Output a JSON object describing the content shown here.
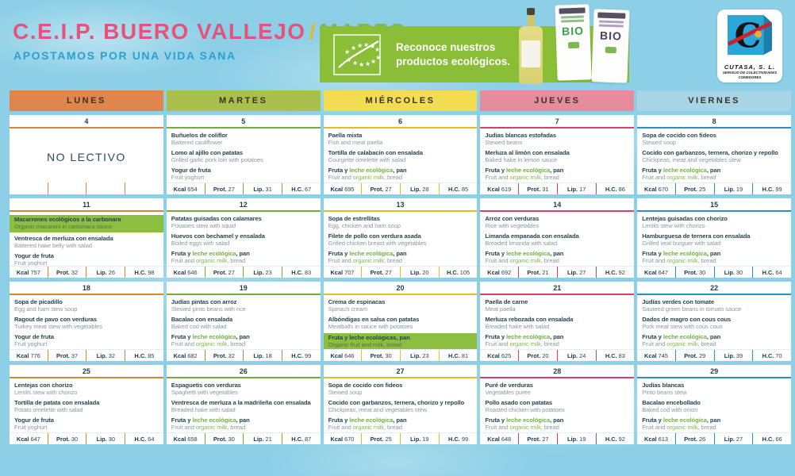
{
  "header": {
    "title_school": "C.E.I.P. BUERO VALLEJO",
    "title_slash": "/",
    "title_month": "MARZO",
    "subtitle": "APOSTAMOS POR UNA VIDA SANA"
  },
  "banner": {
    "text": "Reconoce nuestros productos ecológicos.",
    "background_color": "#8abe37"
  },
  "products": {
    "bio_label": "BIO"
  },
  "logo": {
    "name": "CUTASA, S. L.",
    "sub1": "SERVICIO DE COLECTIVIDADES",
    "sub2": "COMEDORES"
  },
  "nutrition_labels": {
    "kcal": "Kcal",
    "prot": "Prot.",
    "lip": "Lip.",
    "hc": "H.C."
  },
  "colors": {
    "title_pink": "#e6537a",
    "title_yellow": "#eab52c",
    "title_green": "#7db94e",
    "subtitle_blue": "#2da0d0",
    "eco_green": "#72b043",
    "highlight_green": "#8cbf40"
  },
  "days": [
    {
      "label": "Lunes",
      "header_color": "#e0854b",
      "accent_color": "#d8862f"
    },
    {
      "label": "Martes",
      "header_color": "#a9c04d",
      "accent_color": "#76ad35"
    },
    {
      "label": "Miércoles",
      "header_color": "#f2dc52",
      "accent_color": "#e3bd23"
    },
    {
      "label": "Jueves",
      "header_color": "#e78c9c",
      "accent_color": "#d84069"
    },
    {
      "label": "Viernes",
      "header_color": "#a7d5e7",
      "accent_color": "#2593c0"
    }
  ],
  "no_school_label": "NO LECTIVO",
  "weeks": [
    {
      "cells": [
        {
          "date": "4",
          "no_school": true
        },
        {
          "date": "5",
          "courses": [
            {
              "es": "Buñuelos de coliflor",
              "en": "Battered cauliflower"
            },
            {
              "es": "Lomo al ajillo con patatas",
              "en": "Grilled garlic pork loin with potatoes"
            },
            {
              "es": "Yogur de fruta",
              "en": "Fruit yoghurt"
            }
          ],
          "nutrition": {
            "kcal": "654",
            "prot": "27",
            "lip": "31",
            "hc": "67"
          }
        },
        {
          "date": "6",
          "courses": [
            {
              "es": "Paella mixta",
              "en": "Fish and meat paella"
            },
            {
              "es": "Tortilla de calabacín con ensalada",
              "en": "Courgette omelette with salad"
            },
            {
              "es": "Fruta y leche ecológica, pan",
              "es_eco": "leche ecológica",
              "en": "Fruit and organic milk, bread",
              "en_eco": "organic milk"
            }
          ],
          "nutrition": {
            "kcal": "695",
            "prot": "27",
            "lip": "28",
            "hc": "85"
          }
        },
        {
          "date": "7",
          "courses": [
            {
              "es": "Judías blancas estofadas",
              "en": "Stewed beans"
            },
            {
              "es": "Merluza al limón con ensalada",
              "en": "Baked hake in lemon sauce"
            },
            {
              "es": "Fruta y leche ecológica, pan",
              "es_eco": "leche ecológica",
              "en": "Fruit and organic milk, bread",
              "en_eco": "organic milk"
            }
          ],
          "nutrition": {
            "kcal": "619",
            "prot": "31",
            "lip": "17",
            "hc": "86"
          }
        },
        {
          "date": "8",
          "courses": [
            {
              "es": "Sopa de cocido con fideos",
              "en": "Stewed soup"
            },
            {
              "es": "Cocido con garbanzos, ternera, chorizo y repollo",
              "en": "Chickpeas, meat and vegetables stew"
            },
            {
              "es": "Fruta y leche ecológica, pan",
              "es_eco": "leche ecológica",
              "en": "Fruit and organic milk, bread",
              "en_eco": "organic milk"
            }
          ],
          "nutrition": {
            "kcal": "670",
            "prot": "25",
            "lip": "19",
            "hc": "99"
          }
        }
      ]
    },
    {
      "cells": [
        {
          "date": "11",
          "courses": [
            {
              "es": "Macarrones ecológicos a la carbonara",
              "en": "Organic macaroni in carbonara sauce",
              "highlight": true
            },
            {
              "es": "Ventresca de merluza con ensalada",
              "en": "Battered hake belly with salad"
            },
            {
              "es": "Yogur de fruta",
              "en": "Fruit yoghurt"
            }
          ],
          "nutrition": {
            "kcal": "757",
            "prot": "32",
            "lip": "26",
            "hc": "98"
          }
        },
        {
          "date": "12",
          "courses": [
            {
              "es": "Patatas guisadas con calamares",
              "en": "Potatoes stew with squid"
            },
            {
              "es": "Huevos con bechamel y ensalada",
              "en": "Boiled eggs with salad"
            },
            {
              "es": "Fruta y leche ecológica, pan",
              "es_eco": "leche ecológica",
              "en": "Fruit and organic milk, bread",
              "en_eco": "organic milk"
            }
          ],
          "nutrition": {
            "kcal": "646",
            "prot": "27",
            "lip": "23",
            "hc": "83"
          }
        },
        {
          "date": "13",
          "courses": [
            {
              "es": "Sopa de estrellitas",
              "en": "Egg, chicken and ham soup"
            },
            {
              "es": "Filete de pollo con verdura asada",
              "en": "Grilled chicken breast with vegetables"
            },
            {
              "es": "Fruta y leche ecológica, pan",
              "es_eco": "leche ecológica",
              "en": "Fruit and organic milk, bread",
              "en_eco": "organic milk"
            }
          ],
          "nutrition": {
            "kcal": "707",
            "prot": "27",
            "lip": "20",
            "hc": "105"
          }
        },
        {
          "date": "14",
          "courses": [
            {
              "es": "Arroz con verduras",
              "en": "Rice with vegetables"
            },
            {
              "es": "Limanda empanada con ensalada",
              "en": "Breaded limanda with salad"
            },
            {
              "es": "Fruta y leche ecológica, pan",
              "es_eco": "leche ecológica",
              "en": "Fruit and organic milk, bread",
              "en_eco": "organic milk"
            }
          ],
          "nutrition": {
            "kcal": "692",
            "prot": "21",
            "lip": "27",
            "hc": "92"
          }
        },
        {
          "date": "15",
          "courses": [
            {
              "es": "Lentejas guisadas con chorizo",
              "en": "Lentils stew with chorizo"
            },
            {
              "es": "Hamburguesa de ternera con ensalada",
              "en": "Grilled veal burguer with salad"
            },
            {
              "es": "Fruta y leche ecológica, pan",
              "es_eco": "leche ecológica",
              "en": "Fruit and organic milk, bread",
              "en_eco": "organic milk"
            }
          ],
          "nutrition": {
            "kcal": "647",
            "prot": "30",
            "lip": "30",
            "hc": "64"
          }
        }
      ]
    },
    {
      "cells": [
        {
          "date": "18",
          "courses": [
            {
              "es": "Sopa de picadillo",
              "en": "Egg and ham stew soup"
            },
            {
              "es": "Ragout de pavo con verduras",
              "en": "Turkey meat stew with vegetables"
            },
            {
              "es": "Yogur de fruta",
              "en": "Fruit yoghurt"
            }
          ],
          "nutrition": {
            "kcal": "776",
            "prot": "37",
            "lip": "32",
            "hc": "85"
          }
        },
        {
          "date": "19",
          "courses": [
            {
              "es": "Judías pintas con arroz",
              "en": "Stewed pinto beans with rice"
            },
            {
              "es": "Bacalao con ensalada",
              "en": "Baked cod with salad"
            },
            {
              "es": "Fruta y leche ecológica, pan",
              "es_eco": "leche ecológica",
              "en": "Fruit and organic milk, bread",
              "en_eco": "organic milk"
            }
          ],
          "nutrition": {
            "kcal": "682",
            "prot": "32",
            "lip": "18",
            "hc": "99"
          }
        },
        {
          "date": "20",
          "courses": [
            {
              "es": "Crema de espinacas",
              "en": "Spinach cream"
            },
            {
              "es": "Albóndigas en salsa con patatas",
              "en": "Meatballs in sauce with potatoes"
            },
            {
              "es": "Fruta y leche ecológicas, pan",
              "en": "Organic fruit and milk, bread",
              "highlight": true
            }
          ],
          "nutrition": {
            "kcal": "646",
            "prot": "30",
            "lip": "23",
            "hc": "81"
          }
        },
        {
          "date": "21",
          "courses": [
            {
              "es": "Paella de carne",
              "en": "Meat paella"
            },
            {
              "es": "Merluza rebozada con ensalada",
              "en": "Breaded hake with salad"
            },
            {
              "es": "Fruta y leche ecológica, pan",
              "es_eco": "leche ecológica",
              "en": "Fruit and organic milk, bread",
              "en_eco": "organic milk"
            }
          ],
          "nutrition": {
            "kcal": "625",
            "prot": "20",
            "lip": "24",
            "hc": "83"
          }
        },
        {
          "date": "22",
          "courses": [
            {
              "es": "Judías verdes con tomate",
              "en": "Sauteed green beans in tomato sauce"
            },
            {
              "es": "Dados de magro con cous cous",
              "en": "Pork meat stew with cous cous"
            },
            {
              "es": "Fruta y leche ecológica, pan",
              "es_eco": "leche ecológica",
              "en": "Fruit and organic milk, bread",
              "en_eco": "organic milk"
            }
          ],
          "nutrition": {
            "kcal": "745",
            "prot": "29",
            "lip": "39",
            "hc": "70"
          }
        }
      ]
    },
    {
      "cells": [
        {
          "date": "25",
          "courses": [
            {
              "es": "Lentejas con chorizo",
              "en": "Lentils stew with chorizo"
            },
            {
              "es": "Tortilla de patata con ensalada",
              "en": "Potato omelette with salad"
            },
            {
              "es": "Yogur de fruta",
              "en": "Fruit yoghurt"
            }
          ],
          "nutrition": {
            "kcal": "647",
            "prot": "30",
            "lip": "30",
            "hc": "64"
          }
        },
        {
          "date": "26",
          "courses": [
            {
              "es": "Espaguetis con verduras",
              "en": "Spaghetti with vegetables"
            },
            {
              "es": "Ventresca de merluza a la madrileña con ensalada",
              "en": "Breaded hake with salad"
            },
            {
              "es": "Fruta y leche ecológica, pan",
              "es_eco": "leche ecológica",
              "en": "Fruit and organic milk, bread",
              "en_eco": "organic milk"
            }
          ],
          "nutrition": {
            "kcal": "658",
            "prot": "30",
            "lip": "21",
            "hc": "87"
          }
        },
        {
          "date": "27",
          "courses": [
            {
              "es": "Sopa de cocido con fideos",
              "en": "Stewed soup"
            },
            {
              "es": "Cocido con garbanzos, ternera, chorizo y repollo",
              "en": "Chickpeas, meat and vegetables stew"
            },
            {
              "es": "Fruta y leche ecológica, pan",
              "es_eco": "leche ecológica",
              "en": "Fruit and organic milk, bread",
              "en_eco": "organic milk"
            }
          ],
          "nutrition": {
            "kcal": "670",
            "prot": "25",
            "lip": "19",
            "hc": "99"
          }
        },
        {
          "date": "28",
          "courses": [
            {
              "es": "Puré de verduras",
              "en": "Vegetables puree"
            },
            {
              "es": "Pollo asado con patatas",
              "en": "Roasted chicken with potatoes"
            },
            {
              "es": "Fruta y leche ecológica, pan",
              "es_eco": "leche ecológica",
              "en": "Fruit and organic milk, bread",
              "en_eco": "organic milk"
            }
          ],
          "nutrition": {
            "kcal": "648",
            "prot": "27",
            "lip": "19",
            "hc": "92"
          }
        },
        {
          "date": "29",
          "courses": [
            {
              "es": "Judías blancas",
              "en": "Pinto beans stew"
            },
            {
              "es": "Bacalao encebollado",
              "en": "Baked cod with onion"
            },
            {
              "es": "Fruta y leche ecológica, pan",
              "es_eco": "leche ecológica",
              "en": "Fruit and organic milk, bread",
              "en_eco": "organic milk"
            }
          ],
          "nutrition": {
            "kcal": "613",
            "prot": "26",
            "lip": "27",
            "hc": "66"
          }
        }
      ]
    }
  ]
}
